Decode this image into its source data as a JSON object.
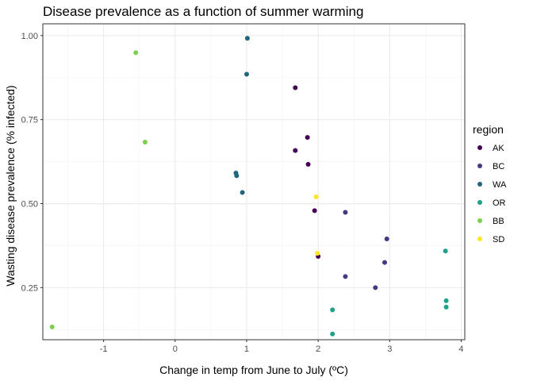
{
  "chart_data": {
    "type": "scatter",
    "title": "Disease prevalence as a function of summer warming",
    "xlabel": "Change in temp from June to July (ºC)",
    "ylabel": "Wasting disease prevalence (% infected)",
    "xlim": [
      -1.85,
      4.05
    ],
    "ylim": [
      0.095,
      1.035
    ],
    "x_ticks": [
      -1,
      0,
      1,
      2,
      3,
      4
    ],
    "x_tick_labels": [
      "-1",
      "0",
      "1",
      "2",
      "3",
      "4"
    ],
    "y_ticks": [
      0.25,
      0.5,
      0.75,
      1.0
    ],
    "y_tick_labels": [
      "0.25",
      "0.50",
      "0.75",
      "1.00"
    ],
    "grid": true,
    "legend": {
      "title": "region",
      "placement": "right"
    },
    "series": [
      {
        "name": "AK",
        "color": "#440154",
        "points": [
          [
            1.68,
            0.845
          ],
          [
            1.85,
            0.697
          ],
          [
            1.68,
            0.658
          ],
          [
            1.86,
            0.617
          ],
          [
            1.95,
            0.479
          ],
          [
            2.0,
            0.343
          ]
        ]
      },
      {
        "name": "BC",
        "color": "#443A83",
        "points": [
          [
            2.38,
            0.474
          ],
          [
            2.96,
            0.395
          ],
          [
            2.93,
            0.325
          ],
          [
            2.38,
            0.283
          ],
          [
            2.8,
            0.25
          ]
        ]
      },
      {
        "name": "WA",
        "color": "#21667E",
        "points": [
          [
            1.01,
            0.992
          ],
          [
            1.0,
            0.885
          ],
          [
            0.85,
            0.591
          ],
          [
            0.86,
            0.583
          ],
          [
            0.94,
            0.533
          ]
        ]
      },
      {
        "name": "OR",
        "color": "#1FA187",
        "points": [
          [
            3.78,
            0.359
          ],
          [
            3.79,
            0.211
          ],
          [
            3.79,
            0.192
          ],
          [
            2.2,
            0.184
          ],
          [
            2.2,
            0.112
          ]
        ]
      },
      {
        "name": "BB",
        "color": "#7AD151",
        "points": [
          [
            -0.55,
            0.949
          ],
          [
            -0.42,
            0.683
          ],
          [
            -1.72,
            0.133
          ]
        ]
      },
      {
        "name": "SD",
        "color": "#FDE725",
        "points": [
          [
            1.97,
            0.52
          ],
          [
            1.99,
            0.352
          ]
        ]
      }
    ]
  }
}
